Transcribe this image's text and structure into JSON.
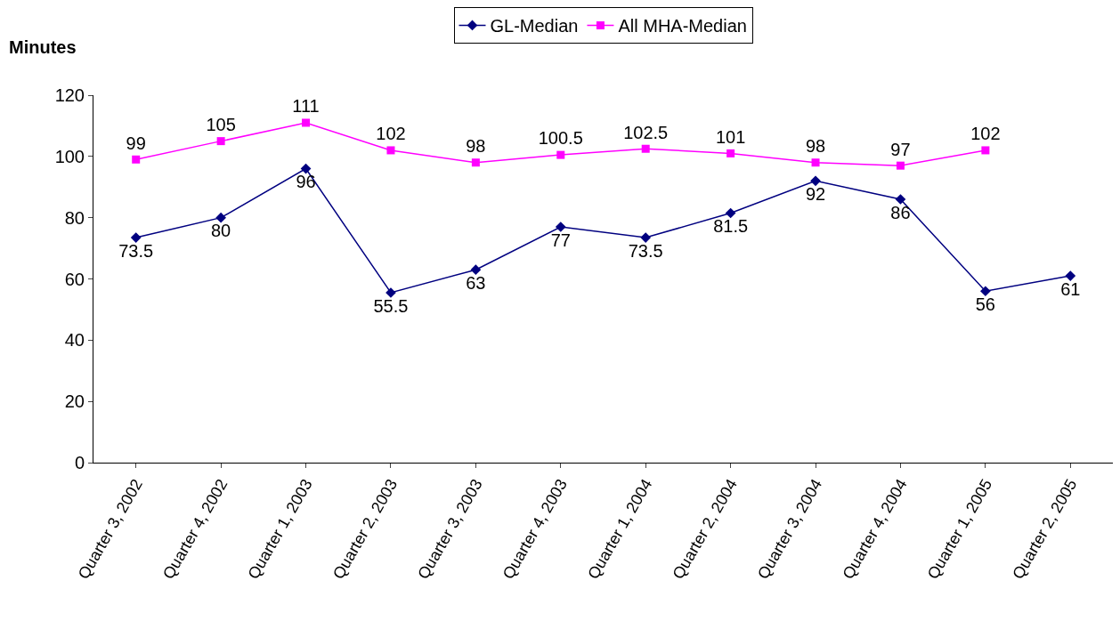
{
  "chart_data": {
    "type": "line",
    "ylabel": "Minutes",
    "categories": [
      "Quarter 3, 2002",
      "Quarter 4, 2002",
      "Quarter 1, 2003",
      "Quarter 2, 2003",
      "Quarter 3, 2003",
      "Quarter 4, 2003",
      "Quarter 1, 2004",
      "Quarter 2, 2004",
      "Quarter 3, 2004",
      "Quarter 4, 2004",
      "Quarter 1, 2005",
      "Quarter 2, 2005"
    ],
    "series": [
      {
        "name": "GL-Median",
        "color": "#000080",
        "marker": "diamond",
        "values": [
          73.5,
          80,
          96,
          55.5,
          63,
          77,
          73.5,
          81.5,
          92,
          86,
          56,
          61
        ]
      },
      {
        "name": "All MHA-Median",
        "color": "#ff00ff",
        "marker": "square",
        "values": [
          99,
          105,
          111,
          102,
          98,
          100.5,
          102.5,
          101,
          98,
          97,
          102,
          null
        ]
      }
    ],
    "ylim": [
      0,
      120
    ],
    "yticks": [
      0,
      20,
      40,
      60,
      80,
      100,
      120
    ],
    "legend": "top",
    "data_labels": true,
    "line_style": "solid"
  }
}
